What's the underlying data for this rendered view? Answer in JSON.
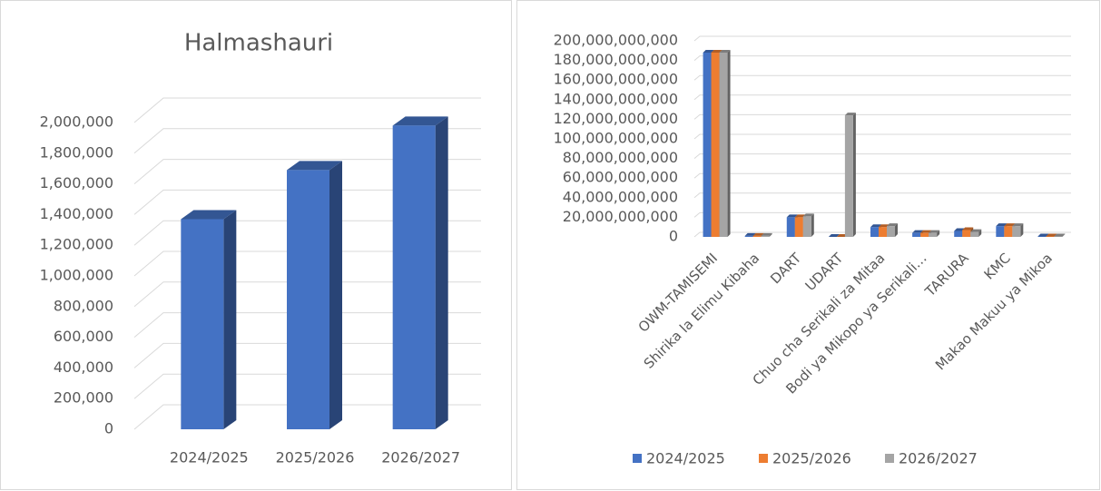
{
  "chart_data": [
    {
      "type": "bar3d",
      "title": "Halmashauri",
      "categories": [
        "2024/2025",
        "2025/2026",
        "2026/2027"
      ],
      "values": [
        1370000,
        1690000,
        1980000
      ],
      "color": "#4472c4",
      "ylim": [
        0,
        2000000
      ],
      "yticks": [
        0,
        {
          "value": 200000,
          "label": "200,000"
        },
        {
          "value": 400000,
          "label": "400,000"
        },
        {
          "value": 600000,
          "label": "600,000"
        },
        {
          "value": 800000,
          "label": "800,000"
        },
        {
          "value": 1000000,
          "label": "1,000,000"
        },
        {
          "value": 1200000,
          "label": "1,200,000"
        },
        {
          "value": 1400000,
          "label": "1,400,000"
        },
        {
          "value": 1600000,
          "label": "1,600,000"
        },
        {
          "value": 1800000,
          "label": "1,800,000"
        },
        {
          "value": 2000000,
          "label": "2,000,000"
        }
      ],
      "grid": true
    },
    {
      "type": "grouped_bar3d",
      "categories": [
        "OWM-TAMISEMI",
        "Shirika la Elimu Kibaha",
        "DART",
        "UDART",
        "Chuo cha Serikali za Mitaa",
        "Bodi ya Mikopo ya Serikali…",
        "TARURA",
        "KMC",
        "Makao Makuu ya Mikoa"
      ],
      "series": [
        {
          "name": "2024/2025",
          "color": "#4472c4",
          "values": [
            188000000000,
            1000000000,
            20000000000,
            0,
            10000000000,
            4000000000,
            6000000000,
            11000000000,
            500000000
          ]
        },
        {
          "name": "2025/2026",
          "color": "#ed7d31",
          "values": [
            188000000000,
            1000000000,
            20000000000,
            0,
            10000000000,
            4000000000,
            7000000000,
            11000000000,
            500000000
          ]
        },
        {
          "name": "2026/2027",
          "color": "#a5a5a5",
          "values": [
            188000000000,
            1000000000,
            21000000000,
            124000000000,
            11000000000,
            4000000000,
            5000000000,
            11000000000,
            500000000
          ]
        }
      ],
      "ylim": [
        0,
        200000000000
      ],
      "yticks": [
        0,
        {
          "value": 20000000000,
          "label": "20,000,000,000"
        },
        {
          "value": 40000000000,
          "label": "40,000,000,000"
        },
        {
          "value": 60000000000,
          "label": "60,000,000,000"
        },
        {
          "value": 80000000000,
          "label": "80,000,000,000"
        },
        {
          "value": 100000000000,
          "label": "100,000,000,000"
        },
        {
          "value": 120000000000,
          "label": "120,000,000,000"
        },
        {
          "value": 140000000000,
          "label": "140,000,000,000"
        },
        {
          "value": 160000000000,
          "label": "160,000,000,000"
        },
        {
          "value": 180000000000,
          "label": "180,000,000,000"
        },
        {
          "value": 200000000000,
          "label": "200,000,000,000"
        }
      ],
      "grid": true,
      "legend": "bottom"
    }
  ]
}
